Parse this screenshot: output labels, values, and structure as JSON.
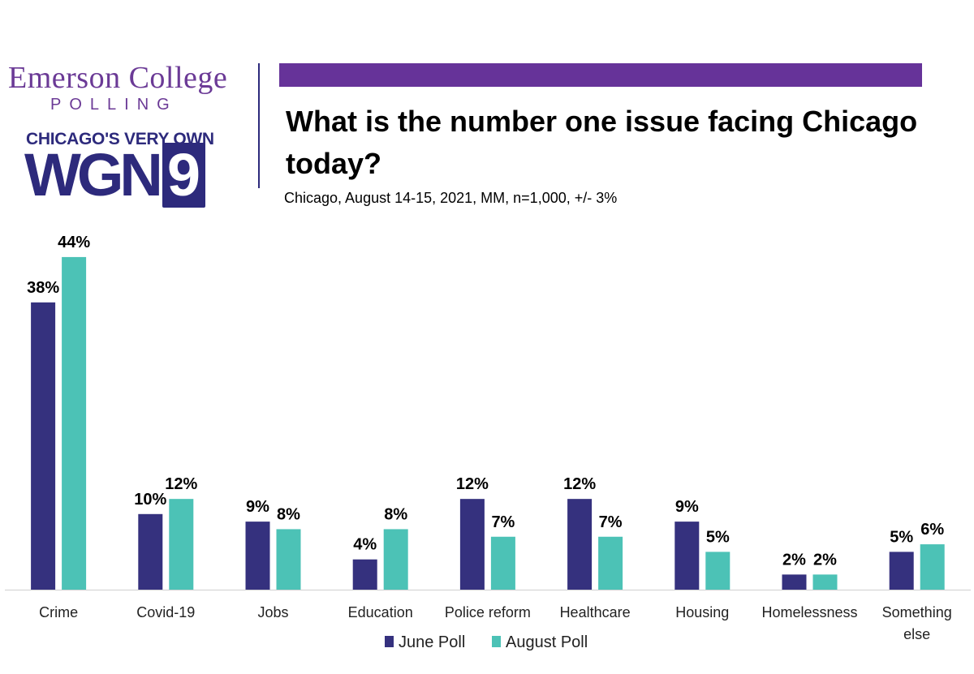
{
  "branding": {
    "emerson_line": "Emerson College",
    "polling_line": "POLLING",
    "tagline": "CHICAGO'S VERY OWN",
    "wgn_text": "WGN",
    "wgn_number": "9",
    "brand_purple": "#663399",
    "brand_navy": "#2d2a7c"
  },
  "header": {
    "title": "What is the number one issue facing Chicago today?",
    "subtitle": "Chicago, August 14-15, 2021, MM, n=1,000, +/- 3%"
  },
  "chart_data": {
    "type": "bar",
    "categories": [
      "Crime",
      "Covid-19",
      "Jobs",
      "Education",
      "Police reform",
      "Healthcare",
      "Housing",
      "Homelessness",
      "Something else"
    ],
    "series": [
      {
        "name": "June Poll",
        "color": "#35317e",
        "values": [
          38,
          10,
          9,
          4,
          12,
          12,
          9,
          2,
          5
        ]
      },
      {
        "name": "August Poll",
        "color": "#4cc2b6",
        "values": [
          44,
          12,
          8,
          8,
          7,
          7,
          5,
          2,
          6
        ]
      }
    ],
    "value_suffix": "%",
    "ylim": [
      0,
      44
    ],
    "grid": false,
    "legend_position": "bottom-center",
    "title": "",
    "xlabel": "",
    "ylabel": ""
  }
}
